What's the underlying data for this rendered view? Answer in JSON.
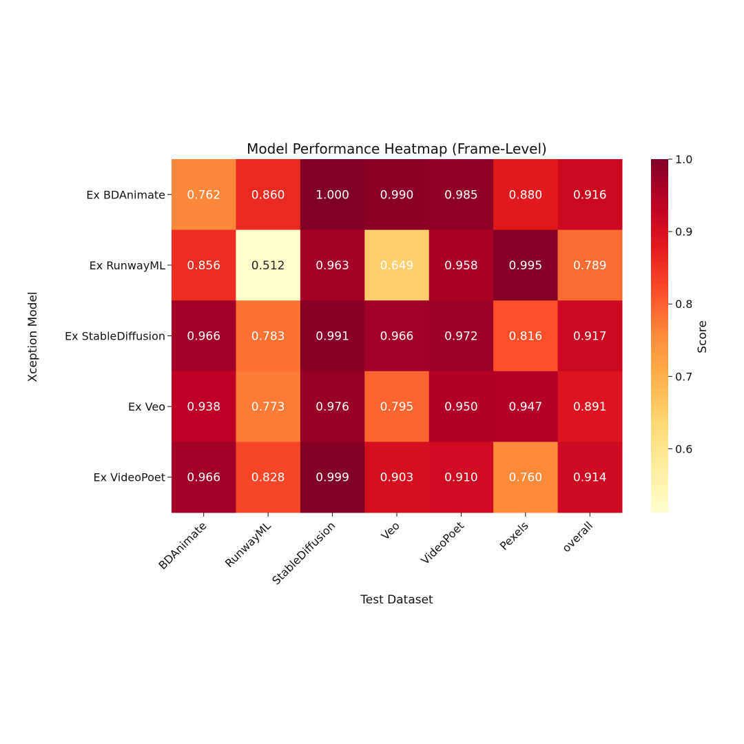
{
  "chart_data": {
    "type": "heatmap",
    "title": "Model Performance Heatmap (Frame-Level)",
    "xlabel": "Test Dataset",
    "ylabel": "Xception Model",
    "colorbar_label": "Score",
    "colormap": "YlOrRd",
    "vmin": 0.512,
    "vmax": 1.0,
    "colorbar_ticks": [
      0.6,
      0.7,
      0.8,
      0.9,
      1.0
    ],
    "colorbar_tick_labels": [
      "0.6",
      "0.7",
      "0.8",
      "0.9",
      "1.0"
    ],
    "columns": [
      "BDAnimate",
      "RunwayML",
      "StableDiffusion",
      "Veo",
      "VideoPoet",
      "Pexels",
      "overall"
    ],
    "rows": [
      "Ex BDAnimate",
      "Ex RunwayML",
      "Ex StableDiffusion",
      "Ex Veo",
      "Ex VideoPoet"
    ],
    "values": [
      [
        0.762,
        0.86,
        1.0,
        0.99,
        0.985,
        0.88,
        0.916
      ],
      [
        0.856,
        0.512,
        0.963,
        0.649,
        0.958,
        0.995,
        0.789
      ],
      [
        0.966,
        0.783,
        0.991,
        0.966,
        0.972,
        0.816,
        0.917
      ],
      [
        0.938,
        0.773,
        0.976,
        0.795,
        0.95,
        0.947,
        0.891
      ],
      [
        0.966,
        0.828,
        0.999,
        0.903,
        0.91,
        0.76,
        0.914
      ]
    ],
    "value_labels": [
      [
        "0.762",
        "0.860",
        "1.000",
        "0.990",
        "0.985",
        "0.880",
        "0.916"
      ],
      [
        "0.856",
        "0.512",
        "0.963",
        "0.649",
        "0.958",
        "0.995",
        "0.789"
      ],
      [
        "0.966",
        "0.783",
        "0.991",
        "0.966",
        "0.972",
        "0.816",
        "0.917"
      ],
      [
        "0.938",
        "0.773",
        "0.976",
        "0.795",
        "0.950",
        "0.947",
        "0.891"
      ],
      [
        "0.966",
        "0.828",
        "0.999",
        "0.903",
        "0.910",
        "0.760",
        "0.914"
      ]
    ]
  }
}
